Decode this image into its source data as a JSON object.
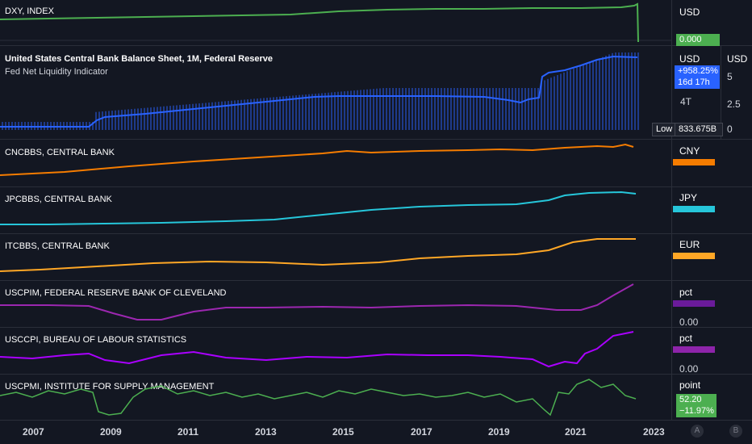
{
  "panes": [
    {
      "id": "dxy",
      "label": "DXY, INDEX",
      "unit": "USD",
      "tag": "0.000",
      "tag_color": "#4caf50",
      "line_color": "#4caf50"
    },
    {
      "id": "fed",
      "label": "United States Central Bank Balance Sheet, 1M, Federal Reserve",
      "sub": "Fed Net Liquidity Indicator",
      "unit": "USD",
      "unit2": "USD",
      "tag": "+958.25%",
      "tag2": "16d 17h",
      "tick_4t": "4T",
      "low_label": "Low",
      "low_value": "833.675B",
      "right_ticks": [
        "5",
        "2.5",
        "0"
      ],
      "line_color": "#2962ff"
    },
    {
      "id": "cn",
      "label": "CNCBBS, CENTRAL BANK",
      "unit": "CNY",
      "line_color": "#f57c00"
    },
    {
      "id": "jp",
      "label": "JPCBBS, CENTRAL BANK",
      "unit": "JPY",
      "line_color": "#26c6da"
    },
    {
      "id": "it",
      "label": "ITCBBS, CENTRAL BANK",
      "unit": "EUR",
      "line_color": "#ffa726"
    },
    {
      "id": "pim",
      "label": "USCPIM, FEDERAL RESERVE BANK OF CLEVELAND",
      "unit": "pct",
      "tick": "0.00",
      "line_color": "#9c27b0"
    },
    {
      "id": "cpi",
      "label": "USCCPI, BUREAU OF LABOUR STATISTICS",
      "unit": "pct",
      "tick": "0.00",
      "line_color": "#aa00ff"
    },
    {
      "id": "pmi",
      "label": "USCPMI, INSTITUTE FOR SUPPLY MANAGEMENT",
      "unit": "point",
      "tag": "52.20",
      "tag2": "−11.97%",
      "line_color": "#4caf50"
    }
  ],
  "x_axis": [
    "2007",
    "2009",
    "2011",
    "2013",
    "2015",
    "2017",
    "2019",
    "2021",
    "2023"
  ],
  "buttons": {
    "a": "A",
    "b": "B"
  }
}
